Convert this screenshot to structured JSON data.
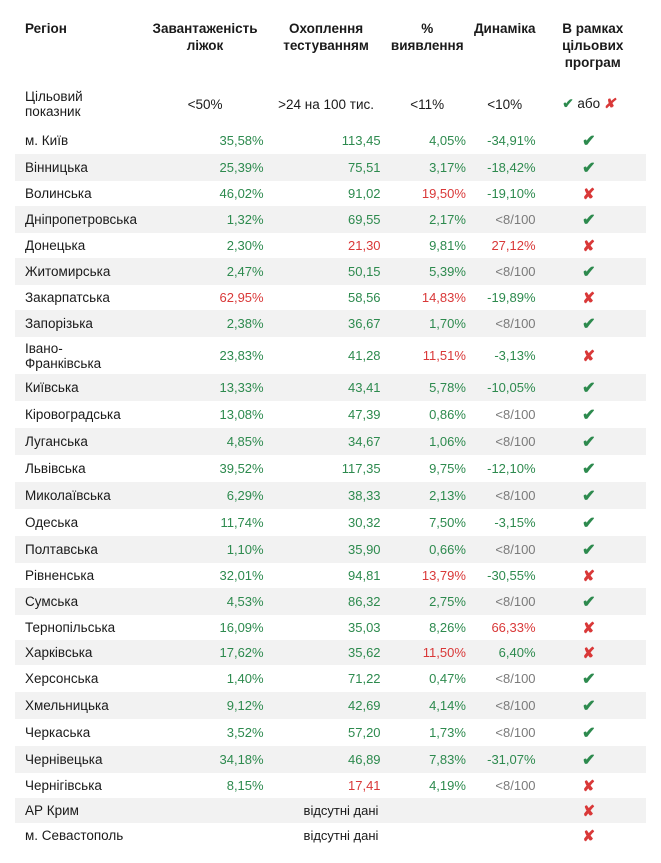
{
  "columns": [
    "Регіон",
    "Завантаженість ліжок",
    "Охоплення тестуванням",
    "% виявлення",
    "Динаміка",
    "В рамках цільових програм"
  ],
  "target_label": "Цільовий показник",
  "targets": [
    "<50%",
    ">24 на 100 тис.",
    "<11%",
    "<10%"
  ],
  "legend_pass": "✔",
  "legend_or": "або",
  "legend_fail": "✘",
  "no_data_text": "відсутні дані",
  "colors": {
    "green": "#2d8a4e",
    "red": "#d93838",
    "grey": "#7a7a7a",
    "black": "#1a1a1a",
    "stripe": "#f2f2f2",
    "bg": "#ffffff"
  },
  "rows": [
    {
      "region": "м. Київ",
      "beds": {
        "v": "35,58%",
        "c": "green"
      },
      "test": {
        "v": "113,45",
        "c": "green"
      },
      "detect": {
        "v": "4,05%",
        "c": "green"
      },
      "dyn": {
        "v": "-34,91%",
        "c": "green"
      },
      "pass": true
    },
    {
      "region": "Вінницька",
      "beds": {
        "v": "25,39%",
        "c": "green"
      },
      "test": {
        "v": "75,51",
        "c": "green"
      },
      "detect": {
        "v": "3,17%",
        "c": "green"
      },
      "dyn": {
        "v": "-18,42%",
        "c": "green"
      },
      "pass": true
    },
    {
      "region": "Волинська",
      "beds": {
        "v": "46,02%",
        "c": "green"
      },
      "test": {
        "v": "91,02",
        "c": "green"
      },
      "detect": {
        "v": "19,50%",
        "c": "red"
      },
      "dyn": {
        "v": "-19,10%",
        "c": "green"
      },
      "pass": false
    },
    {
      "region": "Дніпропетровська",
      "beds": {
        "v": "1,32%",
        "c": "green"
      },
      "test": {
        "v": "69,55",
        "c": "green"
      },
      "detect": {
        "v": "2,17%",
        "c": "green"
      },
      "dyn": {
        "v": "<8/100",
        "c": "grey"
      },
      "pass": true
    },
    {
      "region": "Донецька",
      "beds": {
        "v": "2,30%",
        "c": "green"
      },
      "test": {
        "v": "21,30",
        "c": "red"
      },
      "detect": {
        "v": "9,81%",
        "c": "green"
      },
      "dyn": {
        "v": "27,12%",
        "c": "red"
      },
      "pass": false
    },
    {
      "region": "Житомирська",
      "beds": {
        "v": "2,47%",
        "c": "green"
      },
      "test": {
        "v": "50,15",
        "c": "green"
      },
      "detect": {
        "v": "5,39%",
        "c": "green"
      },
      "dyn": {
        "v": "<8/100",
        "c": "grey"
      },
      "pass": true
    },
    {
      "region": "Закарпатська",
      "beds": {
        "v": "62,95%",
        "c": "red"
      },
      "test": {
        "v": "58,56",
        "c": "green"
      },
      "detect": {
        "v": "14,83%",
        "c": "red"
      },
      "dyn": {
        "v": "-19,89%",
        "c": "green"
      },
      "pass": false
    },
    {
      "region": "Запорізька",
      "beds": {
        "v": "2,38%",
        "c": "green"
      },
      "test": {
        "v": "36,67",
        "c": "green"
      },
      "detect": {
        "v": "1,70%",
        "c": "green"
      },
      "dyn": {
        "v": "<8/100",
        "c": "grey"
      },
      "pass": true
    },
    {
      "region": "Івано-Франківська",
      "beds": {
        "v": "23,83%",
        "c": "green"
      },
      "test": {
        "v": "41,28",
        "c": "green"
      },
      "detect": {
        "v": "11,51%",
        "c": "red"
      },
      "dyn": {
        "v": "-3,13%",
        "c": "green"
      },
      "pass": false
    },
    {
      "region": "Київська",
      "beds": {
        "v": "13,33%",
        "c": "green"
      },
      "test": {
        "v": "43,41",
        "c": "green"
      },
      "detect": {
        "v": "5,78%",
        "c": "green"
      },
      "dyn": {
        "v": "-10,05%",
        "c": "green"
      },
      "pass": true
    },
    {
      "region": "Кіровоградська",
      "beds": {
        "v": "13,08%",
        "c": "green"
      },
      "test": {
        "v": "47,39",
        "c": "green"
      },
      "detect": {
        "v": "0,86%",
        "c": "green"
      },
      "dyn": {
        "v": "<8/100",
        "c": "grey"
      },
      "pass": true
    },
    {
      "region": "Луганська",
      "beds": {
        "v": "4,85%",
        "c": "green"
      },
      "test": {
        "v": "34,67",
        "c": "green"
      },
      "detect": {
        "v": "1,06%",
        "c": "green"
      },
      "dyn": {
        "v": "<8/100",
        "c": "grey"
      },
      "pass": true
    },
    {
      "region": "Львівська",
      "beds": {
        "v": "39,52%",
        "c": "green"
      },
      "test": {
        "v": "117,35",
        "c": "green"
      },
      "detect": {
        "v": "9,75%",
        "c": "green"
      },
      "dyn": {
        "v": "-12,10%",
        "c": "green"
      },
      "pass": true
    },
    {
      "region": "Миколаївська",
      "beds": {
        "v": "6,29%",
        "c": "green"
      },
      "test": {
        "v": "38,33",
        "c": "green"
      },
      "detect": {
        "v": "2,13%",
        "c": "green"
      },
      "dyn": {
        "v": "<8/100",
        "c": "grey"
      },
      "pass": true
    },
    {
      "region": "Одеська",
      "beds": {
        "v": "11,74%",
        "c": "green"
      },
      "test": {
        "v": "30,32",
        "c": "green"
      },
      "detect": {
        "v": "7,50%",
        "c": "green"
      },
      "dyn": {
        "v": "-3,15%",
        "c": "green"
      },
      "pass": true
    },
    {
      "region": "Полтавська",
      "beds": {
        "v": "1,10%",
        "c": "green"
      },
      "test": {
        "v": "35,90",
        "c": "green"
      },
      "detect": {
        "v": "0,66%",
        "c": "green"
      },
      "dyn": {
        "v": "<8/100",
        "c": "grey"
      },
      "pass": true
    },
    {
      "region": "Рівненська",
      "beds": {
        "v": "32,01%",
        "c": "green"
      },
      "test": {
        "v": "94,81",
        "c": "green"
      },
      "detect": {
        "v": "13,79%",
        "c": "red"
      },
      "dyn": {
        "v": "-30,55%",
        "c": "green"
      },
      "pass": false
    },
    {
      "region": "Сумська",
      "beds": {
        "v": "4,53%",
        "c": "green"
      },
      "test": {
        "v": "86,32",
        "c": "green"
      },
      "detect": {
        "v": "2,75%",
        "c": "green"
      },
      "dyn": {
        "v": "<8/100",
        "c": "grey"
      },
      "pass": true
    },
    {
      "region": "Тернопільська",
      "beds": {
        "v": "16,09%",
        "c": "green"
      },
      "test": {
        "v": "35,03",
        "c": "green"
      },
      "detect": {
        "v": "8,26%",
        "c": "green"
      },
      "dyn": {
        "v": "66,33%",
        "c": "red"
      },
      "pass": false
    },
    {
      "region": "Харківська",
      "beds": {
        "v": "17,62%",
        "c": "green"
      },
      "test": {
        "v": "35,62",
        "c": "green"
      },
      "detect": {
        "v": "11,50%",
        "c": "red"
      },
      "dyn": {
        "v": "6,40%",
        "c": "green"
      },
      "pass": false
    },
    {
      "region": "Херсонська",
      "beds": {
        "v": "1,40%",
        "c": "green"
      },
      "test": {
        "v": "71,22",
        "c": "green"
      },
      "detect": {
        "v": "0,47%",
        "c": "green"
      },
      "dyn": {
        "v": "<8/100",
        "c": "grey"
      },
      "pass": true
    },
    {
      "region": "Хмельницька",
      "beds": {
        "v": "9,12%",
        "c": "green"
      },
      "test": {
        "v": "42,69",
        "c": "green"
      },
      "detect": {
        "v": "4,14%",
        "c": "green"
      },
      "dyn": {
        "v": "<8/100",
        "c": "grey"
      },
      "pass": true
    },
    {
      "region": "Черкаська",
      "beds": {
        "v": "3,52%",
        "c": "green"
      },
      "test": {
        "v": "57,20",
        "c": "green"
      },
      "detect": {
        "v": "1,73%",
        "c": "green"
      },
      "dyn": {
        "v": "<8/100",
        "c": "grey"
      },
      "pass": true
    },
    {
      "region": "Чернівецька",
      "beds": {
        "v": "34,18%",
        "c": "green"
      },
      "test": {
        "v": "46,89",
        "c": "green"
      },
      "detect": {
        "v": "7,83%",
        "c": "green"
      },
      "dyn": {
        "v": "-31,07%",
        "c": "green"
      },
      "pass": true
    },
    {
      "region": "Чернігівська",
      "beds": {
        "v": "8,15%",
        "c": "green"
      },
      "test": {
        "v": "17,41",
        "c": "red"
      },
      "detect": {
        "v": "4,19%",
        "c": "green"
      },
      "dyn": {
        "v": "<8/100",
        "c": "grey"
      },
      "pass": false
    },
    {
      "region": "АР Крим",
      "no_data": true,
      "pass": false
    },
    {
      "region": "м. Севастополь",
      "no_data": true,
      "pass": false
    }
  ]
}
